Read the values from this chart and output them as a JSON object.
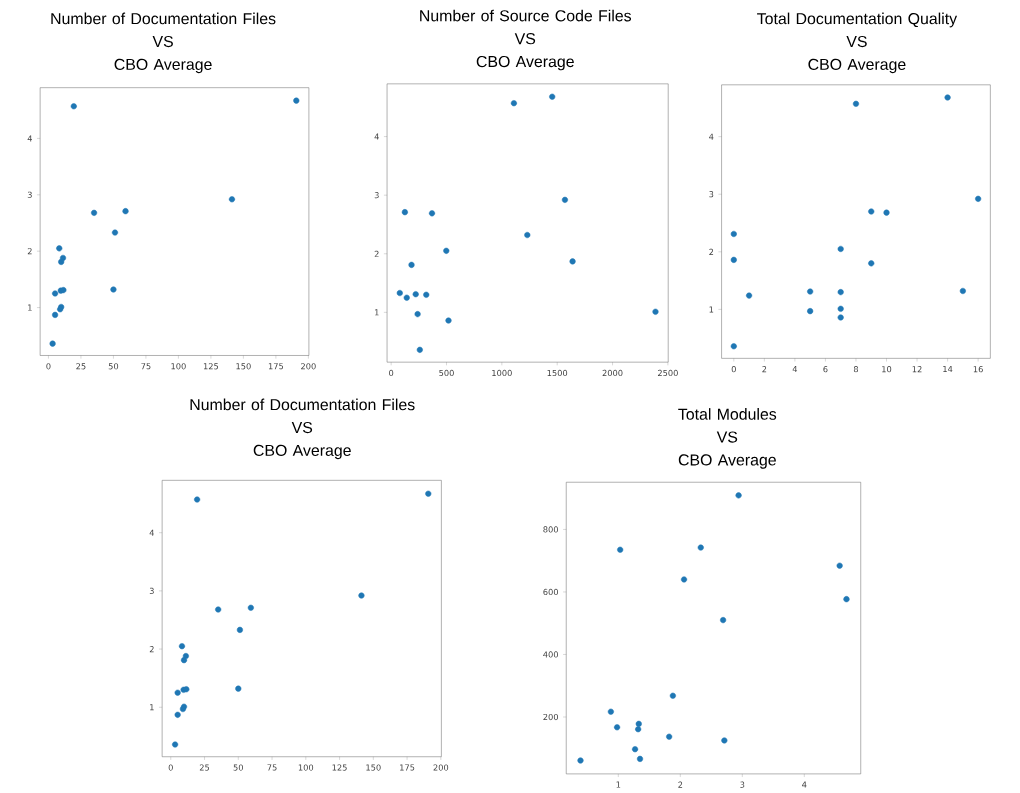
{
  "chart_data": [
    {
      "type": "scatter",
      "title": "Number of Documentation Files\nVS\nCBO Average",
      "color": "#1f77b4",
      "x": [
        19.5,
        190.7,
        141.2,
        35.1,
        59.3,
        51.2,
        50,
        8.3,
        11.2,
        9.8,
        5.1,
        9.5,
        11.5,
        9.8,
        9.0,
        5.1,
        3.2
      ],
      "values": [
        4.57,
        4.67,
        2.92,
        2.68,
        2.71,
        2.33,
        1.32,
        2.05,
        1.88,
        1.81,
        1.25,
        1.3,
        1.31,
        1.01,
        0.97,
        0.87,
        0.36
      ],
      "xlim": [
        -6.4,
        200.4
      ],
      "ylim": [
        0.15,
        4.9
      ],
      "xticks": [
        0,
        25,
        50,
        75,
        100,
        125,
        150,
        175,
        200
      ],
      "yticks": [
        1,
        2,
        3,
        4
      ]
    },
    {
      "type": "scatter",
      "title": "Number of Source Code Files\nVS\nCBO Average",
      "color": "#1f77b4",
      "x": [
        1109,
        1455,
        1570,
        124,
        369,
        1230,
        498,
        1639,
        184,
        78,
        141,
        222,
        317,
        239,
        518,
        259,
        2388
      ],
      "values": [
        4.57,
        4.68,
        2.92,
        2.71,
        2.69,
        2.32,
        2.05,
        1.87,
        1.81,
        1.33,
        1.25,
        1.31,
        1.3,
        0.97,
        0.86,
        0.36,
        1.01
      ],
      "xlim": [
        -37,
        2503
      ],
      "ylim": [
        0.15,
        4.9
      ],
      "xticks": [
        0,
        500,
        1000,
        1500,
        2000,
        2500
      ],
      "yticks": [
        1,
        2,
        3,
        4
      ]
    },
    {
      "type": "scatter",
      "title": "Total Documentation Quality\nVS\nCBO Average",
      "color": "#1f77b4",
      "x": [
        8,
        14,
        16,
        9,
        10,
        0,
        0,
        7,
        9,
        1,
        5,
        7,
        15,
        5,
        7,
        7,
        0
      ],
      "values": [
        4.57,
        4.68,
        2.92,
        2.7,
        2.68,
        2.31,
        1.86,
        2.05,
        1.8,
        1.24,
        1.31,
        1.3,
        1.32,
        0.97,
        1.01,
        0.86,
        0.36
      ],
      "xlim": [
        -0.8,
        16.8
      ],
      "ylim": [
        0.15,
        4.9
      ],
      "xticks": [
        0,
        2,
        4,
        6,
        8,
        10,
        12,
        14,
        16
      ],
      "yticks": [
        1,
        2,
        3,
        4
      ]
    },
    {
      "type": "scatter",
      "title": "Number of Documentation Files\nVS\nCBO Average",
      "color": "#1f77b4",
      "x": [
        19.5,
        190.7,
        141.2,
        35.1,
        59.3,
        51.2,
        50,
        8.3,
        11.2,
        9.8,
        5.1,
        9.5,
        11.5,
        9.8,
        9.0,
        5.1,
        3.2
      ],
      "values": [
        4.57,
        4.67,
        2.92,
        2.68,
        2.71,
        2.33,
        1.32,
        2.05,
        1.88,
        1.81,
        1.25,
        1.3,
        1.31,
        1.01,
        0.97,
        0.87,
        0.36
      ],
      "xlim": [
        -6.4,
        200.4
      ],
      "ylim": [
        0.15,
        4.9
      ],
      "xticks": [
        0,
        25,
        50,
        75,
        100,
        125,
        150,
        175,
        200
      ],
      "yticks": [
        1,
        2,
        3,
        4
      ]
    },
    {
      "type": "scatter",
      "title": "Total Modules\nVS\nCBO Average",
      "color": "#1f77b4",
      "x": [
        2.94,
        1.03,
        2.33,
        2.06,
        4.57,
        4.68,
        2.69,
        1.88,
        0.88,
        0.98,
        1.33,
        1.32,
        1.82,
        2.71,
        1.27,
        1.35,
        0.39
      ],
      "values": [
        909,
        735,
        742,
        640,
        684,
        577,
        510,
        268,
        217,
        167,
        178,
        161,
        137,
        125,
        97,
        66,
        61
      ],
      "xlim": [
        0.16,
        4.91
      ],
      "ylim": [
        18,
        951
      ],
      "xticks": [
        1,
        2,
        3,
        4
      ],
      "yticks": [
        200,
        400,
        600,
        800
      ]
    }
  ]
}
